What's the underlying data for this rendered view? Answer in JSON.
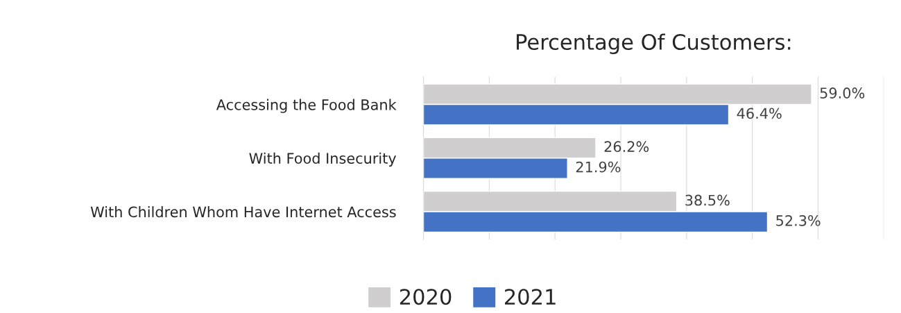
{
  "chart_data": {
    "type": "bar",
    "orientation": "horizontal",
    "title": "Percentage Of Customers:",
    "categories": [
      "Accessing the Food Bank",
      "With Food Insecurity",
      "With Children Whom Have Internet Access"
    ],
    "series": [
      {
        "name": "2020",
        "color": "#d0cece",
        "values": [
          59.0,
          26.2,
          38.5
        ],
        "value_labels": [
          "59.0%",
          "26.2%",
          "38.5%"
        ]
      },
      {
        "name": "2021",
        "color": "#4472c4",
        "values": [
          46.4,
          21.9,
          52.3
        ],
        "value_labels": [
          "46.4%",
          "21.9%",
          "52.3%"
        ]
      }
    ],
    "xlim": [
      0,
      70
    ],
    "xticks": [
      {
        "value": 0,
        "label": null
      },
      {
        "value": 10,
        "label": null
      },
      {
        "value": 20,
        "label": null
      },
      {
        "value": 30,
        "label": null
      },
      {
        "value": 40,
        "label": null
      },
      {
        "value": 50,
        "label": null
      },
      {
        "value": 60,
        "label": null
      },
      {
        "value": 70,
        "label": null
      }
    ],
    "grid": "x",
    "legend": "bottom",
    "tick_labels": "y"
  }
}
